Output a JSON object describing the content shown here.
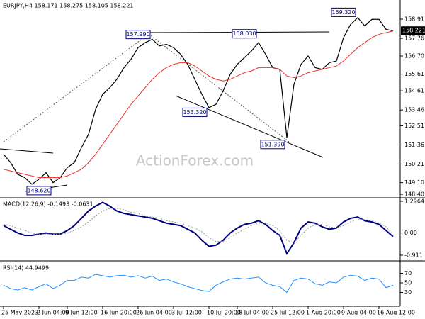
{
  "chart_data": [
    {
      "type": "line",
      "panel": "price",
      "title": "EURJPY,H4 158.171 158.275 158.105 158.221",
      "watermark": "ActionForex.com",
      "ylim": [
        148.19,
        160.06
      ],
      "yticks": [
        158.91,
        157.76,
        {
          "value": 156.7,
          "label": "156.70"
        },
        155.61,
        154.61,
        153.46,
        152.51,
        151.36,
        150.21,
        {
          "value": 149.1,
          "label": "149.10"
        },
        {
          "value": 148.4,
          "label": "148.40"
        }
      ],
      "last_price": 158.221,
      "series": [
        {
          "color": "#000000",
          "width": 1.2,
          "values": [
            150.8,
            150.3,
            149.6,
            149.4,
            149.0,
            149.3,
            149.7,
            149.1,
            149.4,
            150.0,
            150.3,
            151.2,
            152.0,
            153.5,
            154.4,
            154.8,
            155.3,
            156.0,
            156.5,
            157.2,
            157.5,
            157.7,
            157.3,
            157.4,
            157.2,
            156.8,
            156.2,
            155.3,
            154.4,
            153.6,
            153.8,
            154.6,
            155.6,
            156.2,
            156.6,
            157.0,
            157.5,
            156.8,
            156.0,
            155.9,
            151.8,
            155.0,
            156.2,
            156.7,
            156.0,
            155.9,
            156.3,
            156.4,
            157.8,
            158.6,
            159.0,
            158.5,
            158.9,
            158.9,
            158.3,
            158.2
          ]
        },
        {
          "color": "#e8342c",
          "width": 1,
          "values": [
            149.9,
            149.8,
            149.7,
            149.6,
            149.5,
            149.4,
            149.4,
            149.4,
            149.4,
            149.5,
            149.7,
            149.9,
            150.3,
            150.8,
            151.4,
            152.0,
            152.6,
            153.2,
            153.8,
            154.3,
            154.8,
            155.3,
            155.7,
            156.0,
            156.2,
            156.3,
            156.3,
            156.1,
            155.8,
            155.5,
            155.3,
            155.2,
            155.3,
            155.5,
            155.7,
            155.8,
            156.0,
            156.0,
            156.0,
            155.9,
            155.5,
            155.4,
            155.5,
            155.7,
            155.8,
            155.9,
            156.0,
            156.1,
            156.4,
            156.8,
            157.2,
            157.5,
            157.8,
            158.0,
            158.1,
            158.2
          ]
        }
      ],
      "annotations": [
        {
          "x": 19,
          "value": 157.99,
          "label": "157.990"
        },
        {
          "x": 34,
          "value": 158.03,
          "label": "158.030"
        },
        {
          "x": 48,
          "value": 159.32,
          "label": "159.320"
        },
        {
          "x": 27,
          "value": 153.32,
          "label": "153.320"
        },
        {
          "x": 38,
          "value": 151.39,
          "label": "151.390"
        },
        {
          "x": 5,
          "value": 148.62,
          "label": "148.620"
        }
      ]
    },
    {
      "type": "line",
      "panel": "macd",
      "title": "MACD(12,26,9) -0.1493 -0.0631",
      "ylim": [
        -1.144,
        1.41
      ],
      "yticks": [
        1.2964,
        {
          "value": 0,
          "label": "0.00"
        },
        -0.911
      ],
      "series": [
        {
          "color": "#00007f",
          "width": 2,
          "dash": false,
          "values": [
            0.3,
            0.15,
            0.0,
            -0.1,
            -0.1,
            -0.05,
            0.0,
            -0.05,
            -0.05,
            0.1,
            0.3,
            0.6,
            0.9,
            1.1,
            1.25,
            1.1,
            0.9,
            0.8,
            0.75,
            0.7,
            0.65,
            0.6,
            0.5,
            0.4,
            0.35,
            0.3,
            0.15,
            0.0,
            -0.3,
            -0.55,
            -0.5,
            -0.3,
            0.0,
            0.2,
            0.35,
            0.4,
            0.5,
            0.35,
            0.1,
            -0.1,
            -0.85,
            -0.4,
            0.2,
            0.45,
            0.4,
            0.25,
            0.15,
            0.2,
            0.45,
            0.6,
            0.65,
            0.5,
            0.45,
            0.35,
            0.1,
            -0.15
          ]
        },
        {
          "color": "#999999",
          "width": 1,
          "dash": true,
          "values": [
            0.35,
            0.3,
            0.2,
            0.1,
            0.0,
            -0.05,
            -0.05,
            -0.05,
            -0.05,
            0.0,
            0.1,
            0.25,
            0.45,
            0.7,
            0.9,
            1.0,
            1.0,
            0.95,
            0.85,
            0.8,
            0.7,
            0.65,
            0.6,
            0.5,
            0.45,
            0.4,
            0.3,
            0.2,
            0.05,
            -0.2,
            -0.35,
            -0.35,
            -0.2,
            0.0,
            0.15,
            0.3,
            0.4,
            0.4,
            0.3,
            0.1,
            -0.3,
            -0.4,
            -0.1,
            0.2,
            0.35,
            0.35,
            0.25,
            0.2,
            0.3,
            0.45,
            0.55,
            0.55,
            0.5,
            0.4,
            0.25,
            -0.06
          ]
        }
      ]
    },
    {
      "type": "line",
      "panel": "rsi",
      "title": "RSI(14) 44.9499",
      "ylim": [
        4,
        93
      ],
      "yticks": [
        70,
        50,
        30
      ],
      "categories": [
        "25 May 2023",
        null,
        null,
        null,
        null,
        "2 Jun 04:00",
        null,
        null,
        null,
        "9 Jun 12:00",
        null,
        null,
        null,
        null,
        "16 Jun 20:00",
        null,
        null,
        null,
        null,
        "26 Jun 04:00",
        null,
        null,
        null,
        null,
        "3 Jul 12:00",
        null,
        null,
        null,
        null,
        "10 Jul 20:00",
        null,
        null,
        null,
        "18 Jul 04:00",
        null,
        null,
        null,
        null,
        "25 Jul 12:00",
        null,
        null,
        null,
        null,
        "1 Aug 20:00",
        null,
        null,
        null,
        null,
        "9 Aug 04:00",
        null,
        null,
        null,
        null,
        "16 Aug 12:00",
        null,
        null
      ],
      "series": [
        {
          "color": "#1e90ff",
          "width": 1,
          "dash": false,
          "values": [
            45,
            38,
            35,
            40,
            35,
            42,
            48,
            38,
            45,
            55,
            55,
            62,
            60,
            68,
            65,
            62,
            65,
            66,
            62,
            65,
            60,
            64,
            55,
            58,
            52,
            48,
            42,
            38,
            34,
            32,
            45,
            52,
            58,
            60,
            58,
            60,
            62,
            50,
            45,
            42,
            30,
            55,
            60,
            58,
            48,
            45,
            52,
            50,
            62,
            66,
            64,
            55,
            60,
            58,
            40,
            45
          ]
        }
      ]
    }
  ]
}
